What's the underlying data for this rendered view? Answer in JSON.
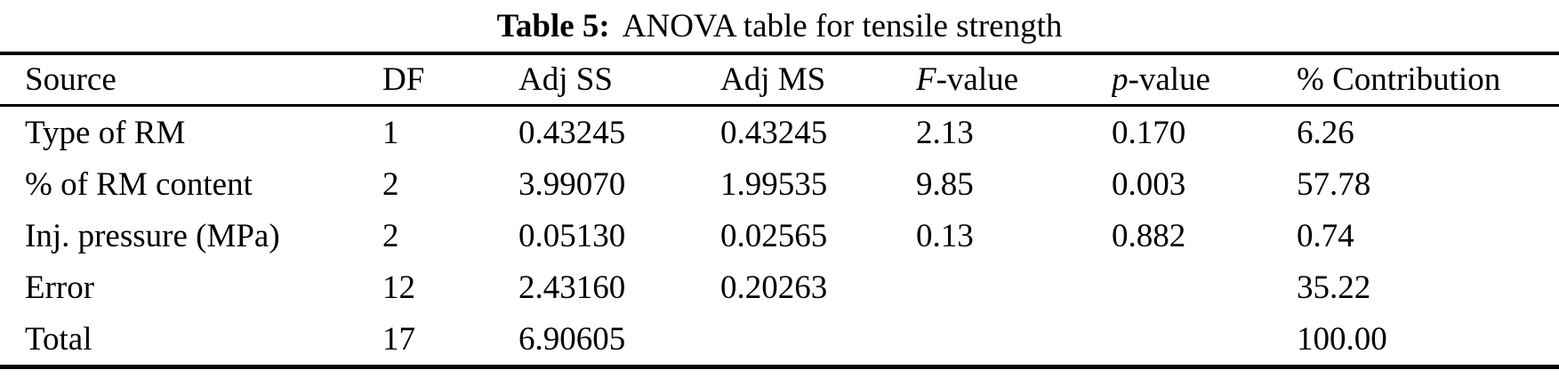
{
  "title": {
    "label": "Table 5:",
    "text": "ANOVA table for tensile strength"
  },
  "table": {
    "headers": [
      {
        "text": "Source"
      },
      {
        "text": "DF"
      },
      {
        "text": "Adj SS"
      },
      {
        "text": "Adj MS"
      },
      {
        "italic": "F",
        "text": "-value"
      },
      {
        "italic": "p",
        "text": "-value"
      },
      {
        "text": "% Contribution"
      }
    ],
    "rows": [
      [
        "Type of RM",
        "1",
        "0.43245",
        "0.43245",
        "2.13",
        "0.170",
        "6.26"
      ],
      [
        "% of RM content",
        "2",
        "3.99070",
        "1.99535",
        "9.85",
        "0.003",
        "57.78"
      ],
      [
        "Inj. pressure (MPa)",
        "2",
        "0.05130",
        "0.02565",
        "0.13",
        "0.882",
        "0.74"
      ],
      [
        "Error",
        "12",
        "2.43160",
        "0.20263",
        "",
        "",
        "35.22"
      ],
      [
        "Total",
        "17",
        "6.90605",
        "",
        "",
        "",
        "100.00"
      ]
    ]
  },
  "colors": {
    "text": "#000000",
    "background": "#ffffff",
    "rule": "#000000"
  }
}
